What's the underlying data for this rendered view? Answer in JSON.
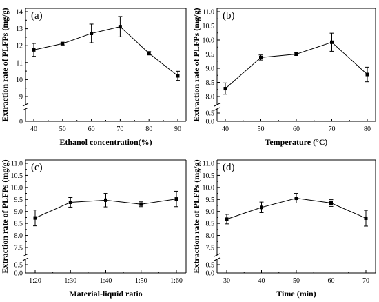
{
  "figure": {
    "colors": {
      "line": "#000000",
      "background": "#ffffff"
    }
  },
  "chart_data": [
    {
      "panel_label": "(a)",
      "type": "line",
      "xlabel": "Ethanol concentration(%)",
      "ylabel": "Extraction rate of PLFPs (mg/g)",
      "x": [
        40,
        50,
        60,
        70,
        80,
        90
      ],
      "x_tick_labels": [
        "40",
        "50",
        "60",
        "70",
        "80",
        "90"
      ],
      "values": [
        11.75,
        12.12,
        12.72,
        13.12,
        11.55,
        10.22
      ],
      "errors": [
        0.38,
        0.08,
        0.55,
        0.6,
        0.1,
        0.27
      ],
      "y_tick_labels_upper": [
        "9",
        "10",
        "11",
        "12",
        "13",
        "14"
      ],
      "y_tick_labels_lower": [
        "0"
      ],
      "ylim_upper": [
        8.5,
        14.2
      ],
      "y_axis_break": true,
      "grid": false
    },
    {
      "panel_label": "(b)",
      "type": "line",
      "xlabel": "Temperature (°C)",
      "ylabel": "Extraction rate of PLFPs (mg/g)",
      "x": [
        40,
        50,
        60,
        70,
        80
      ],
      "x_tick_labels": [
        "40",
        "50",
        "60",
        "70",
        "80"
      ],
      "values": [
        8.28,
        9.38,
        9.5,
        9.92,
        8.78
      ],
      "errors": [
        0.2,
        0.09,
        0.04,
        0.32,
        0.26
      ],
      "y_tick_labels_upper": [
        "8.0",
        "8.5",
        "9.0",
        "9.5",
        "10.0",
        "10.5",
        "11.0"
      ],
      "y_tick_labels_lower": [
        "0.5",
        "0.0"
      ],
      "ylim_upper": [
        7.6,
        11.0
      ],
      "y_axis_break": true,
      "grid": false
    },
    {
      "panel_label": "(c)",
      "type": "line",
      "xlabel": "Material-liquid ratio",
      "ylabel": "Extraction rate of PLFPs (mg/g)",
      "x": [
        "1:20",
        "1:30",
        "1:40",
        "1:50",
        "1:60"
      ],
      "x_tick_labels": [
        "1:20",
        "1:30",
        "1:40",
        "1:50",
        "1:60"
      ],
      "values": [
        8.73,
        9.38,
        9.47,
        9.3,
        9.52
      ],
      "errors": [
        0.33,
        0.2,
        0.28,
        0.1,
        0.32
      ],
      "y_tick_labels_upper": [
        "7.5",
        "8.0",
        "8.5",
        "9.0",
        "9.5",
        "10.0",
        "10.5",
        "11.0"
      ],
      "y_tick_labels_lower": [
        "0.5",
        "0.0"
      ],
      "ylim_upper": [
        7.4,
        11.0
      ],
      "y_axis_break": true,
      "grid": false
    },
    {
      "panel_label": "(d)",
      "type": "line",
      "xlabel": "Time (min)",
      "ylabel": "Extraction rate of PLFPs (mg/g)",
      "x": [
        30,
        40,
        50,
        60,
        70
      ],
      "x_tick_labels": [
        "30",
        "40",
        "50",
        "60",
        "70"
      ],
      "values": [
        8.68,
        9.17,
        9.55,
        9.35,
        8.72
      ],
      "errors": [
        0.2,
        0.22,
        0.2,
        0.14,
        0.33
      ],
      "y_tick_labels_upper": [
        "7.5",
        "8.0",
        "8.5",
        "9.0",
        "9.5",
        "10.0",
        "10.5",
        "11.0"
      ],
      "y_tick_labels_lower": [
        "0.5",
        "0.0"
      ],
      "ylim_upper": [
        7.4,
        11.0
      ],
      "y_axis_break": true,
      "grid": false
    }
  ]
}
